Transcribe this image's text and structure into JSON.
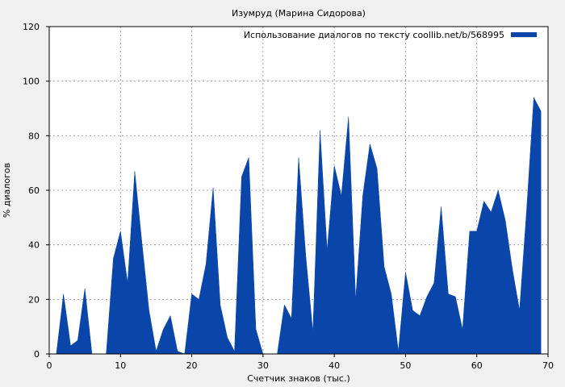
{
  "chart_data": {
    "type": "area",
    "title": "Изумруд (Марина Сидорова)",
    "xlabel": "Счетчик знаков (тыс.)",
    "ylabel": "% диалогов",
    "xlim": [
      0,
      70
    ],
    "ylim": [
      0,
      120
    ],
    "xticks": [
      0,
      10,
      20,
      30,
      40,
      50,
      60,
      70
    ],
    "yticks": [
      0,
      20,
      40,
      60,
      80,
      100,
      120
    ],
    "grid": true,
    "legend_position": "top-right",
    "series": [
      {
        "name": "Использование диалогов по тексту coollib.net/b/568995",
        "color": "#0a46aa",
        "x": [
          0,
          1,
          2,
          3,
          4,
          5,
          6,
          7,
          8,
          9,
          10,
          11,
          12,
          13,
          14,
          15,
          16,
          17,
          18,
          19,
          20,
          21,
          22,
          23,
          24,
          25,
          26,
          27,
          28,
          29,
          30,
          31,
          32,
          33,
          34,
          35,
          36,
          37,
          38,
          39,
          40,
          41,
          42,
          43,
          44,
          45,
          46,
          47,
          48,
          49,
          50,
          51,
          52,
          53,
          54,
          55,
          56,
          57,
          58,
          59,
          60,
          61,
          62,
          63,
          64,
          65,
          66,
          67,
          68,
          69
        ],
        "y": [
          0,
          0,
          22,
          3,
          5,
          24,
          0,
          0,
          0,
          35,
          45,
          26,
          67,
          41,
          16,
          1,
          9,
          14,
          1,
          0,
          22,
          20,
          33,
          61,
          18,
          6,
          1,
          65,
          72,
          9,
          0,
          0,
          0,
          18,
          13,
          72,
          36,
          8,
          82,
          38,
          69,
          58,
          87,
          20,
          58,
          77,
          68,
          32,
          22,
          1,
          30,
          16,
          14,
          21,
          26,
          54,
          22,
          21,
          9,
          45,
          45,
          56,
          52,
          60,
          49,
          31,
          16,
          53,
          94,
          89
        ]
      }
    ]
  }
}
